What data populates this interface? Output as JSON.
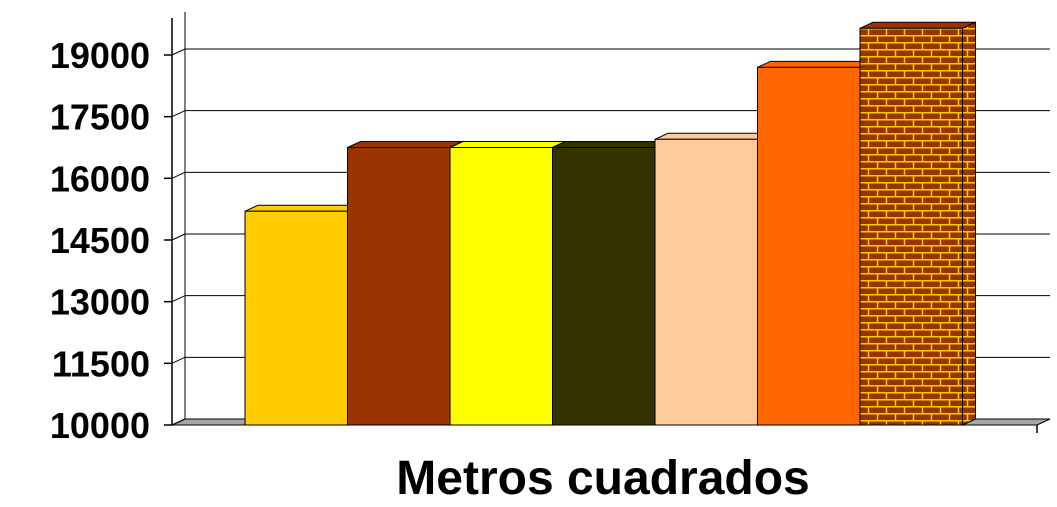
{
  "chart_data": {
    "type": "bar",
    "title": "",
    "xlabel": "Metros cuadrados",
    "ylabel": "",
    "ylim": [
      10000,
      19000
    ],
    "y_ticks": [
      10000,
      11500,
      13000,
      14500,
      16000,
      17500,
      19000
    ],
    "y_tick_labels": [
      "10000",
      "11500",
      "13000",
      "14500",
      "16000",
      "17500",
      "19000"
    ],
    "grid": true,
    "legend": "none",
    "style": "3d-columns",
    "categories": [
      "",
      "",
      "",
      "",
      "",
      "",
      ""
    ],
    "values": [
      15200,
      16750,
      16750,
      16750,
      16950,
      18700,
      19650
    ],
    "colors": [
      "#FFCC00",
      "#993300",
      "#FFFF00",
      "#333300",
      "#FFCC99",
      "#FF6600",
      "#993300"
    ],
    "patterns": [
      "solid",
      "solid",
      "solid",
      "solid",
      "solid",
      "solid",
      "brick"
    ],
    "pattern_color": "#FFCC00"
  }
}
